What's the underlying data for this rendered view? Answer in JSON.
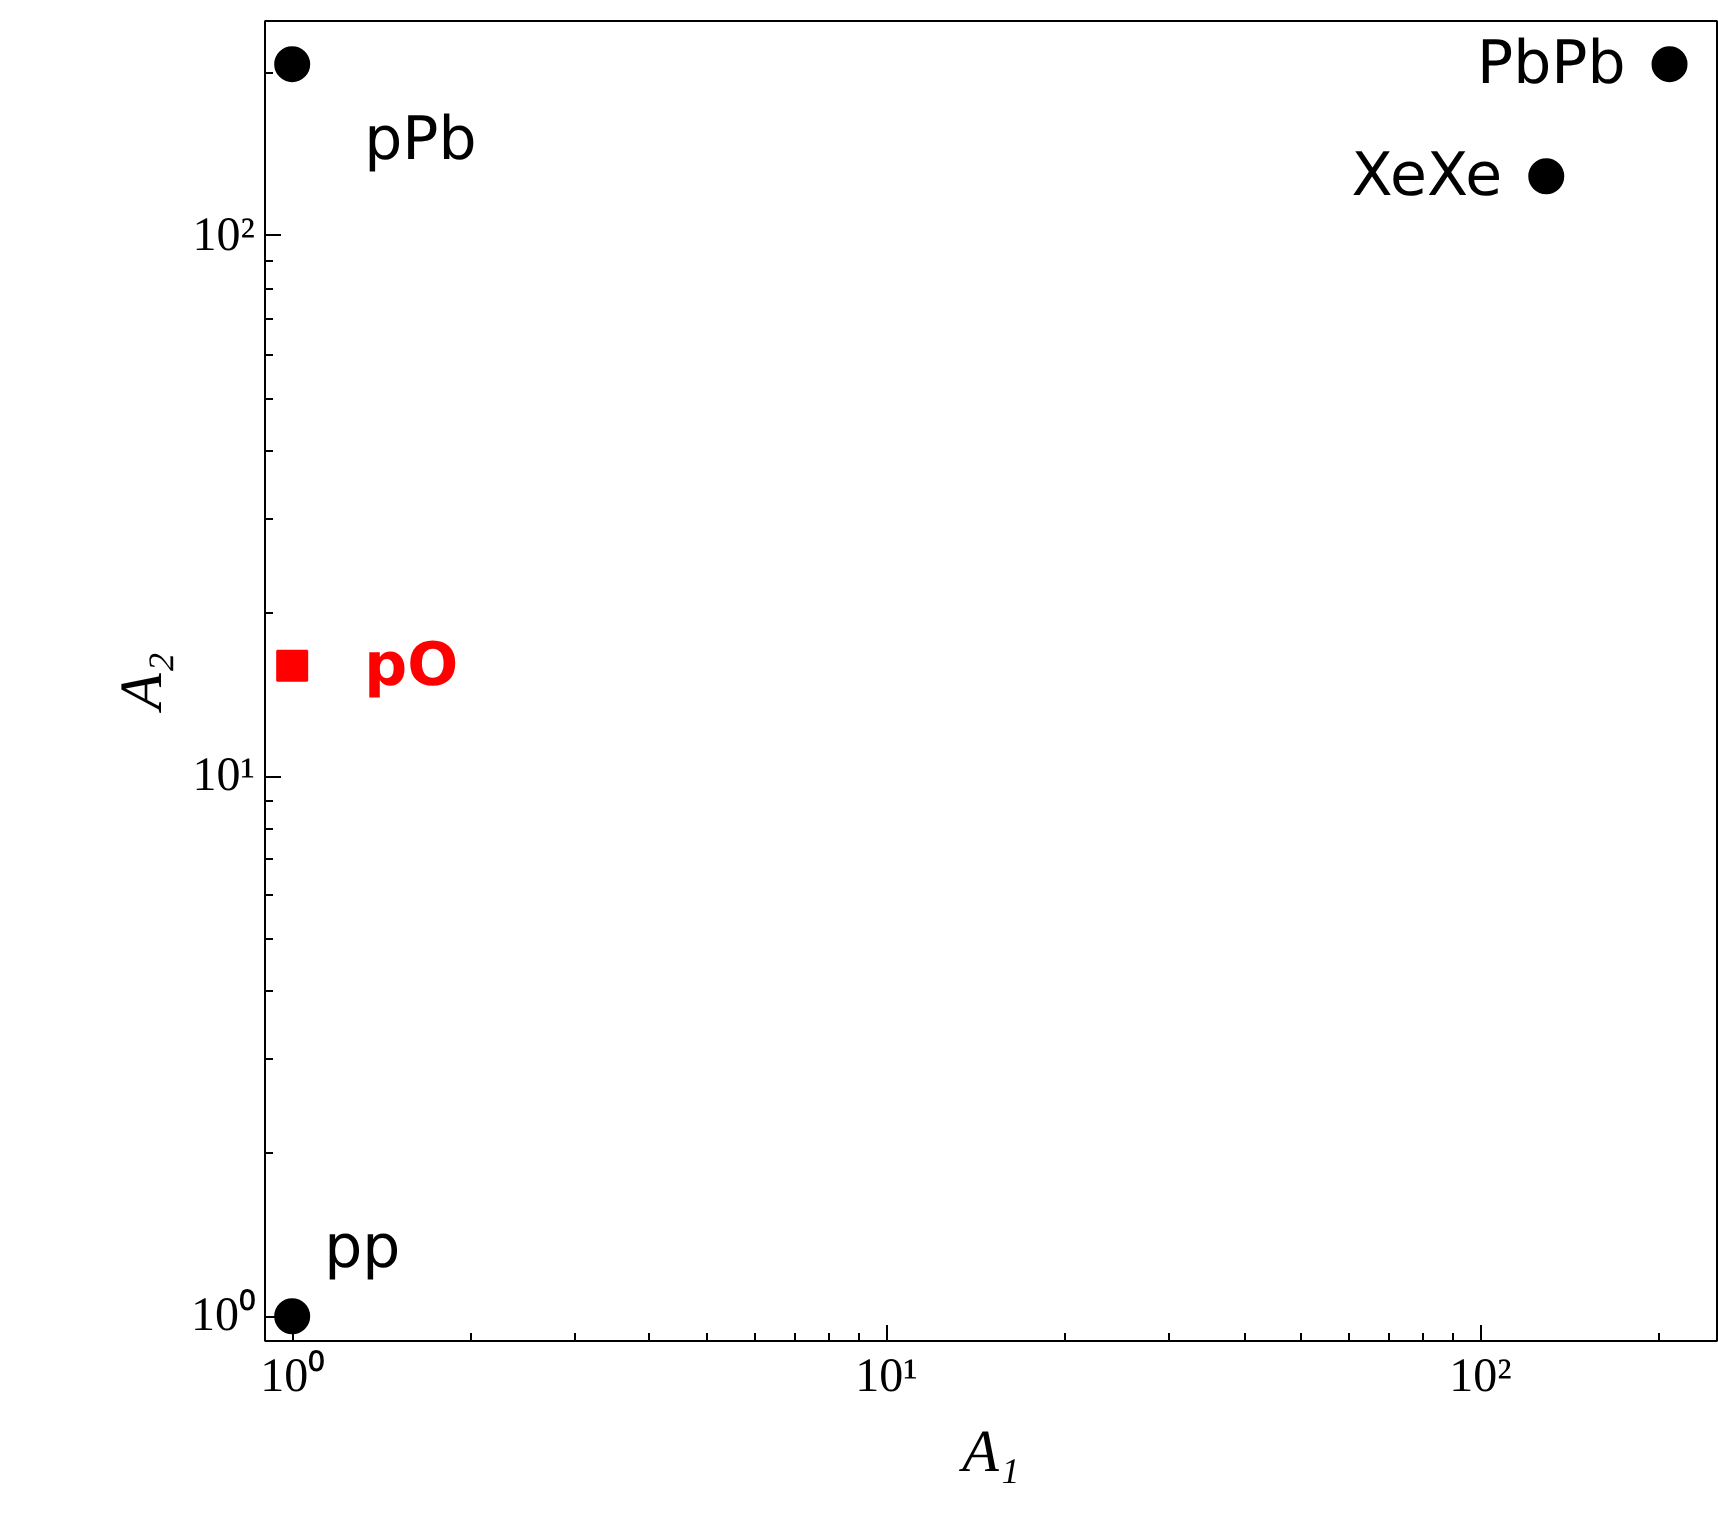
{
  "chart_data": {
    "type": "scatter",
    "xlabel": "A₁",
    "ylabel": "A₂",
    "log": "xy",
    "grid": false,
    "xlim": [
      0.9,
      250
    ],
    "ylim": [
      0.9,
      250
    ],
    "xticks": [
      {
        "value": 1,
        "label": "10⁰"
      },
      {
        "value": 10,
        "label": "10¹"
      },
      {
        "value": 100,
        "label": "10²"
      }
    ],
    "yticks": [
      {
        "value": 1,
        "label": "10⁰"
      },
      {
        "value": 10,
        "label": "10¹"
      },
      {
        "value": 100,
        "label": "10²"
      }
    ],
    "series": [
      {
        "color": "#000000",
        "marker": "circle",
        "x": [
          1,
          1,
          129,
          208
        ],
        "values": [
          1,
          208,
          129,
          208
        ]
      },
      {
        "name": "pO",
        "color": "#ff0000",
        "marker": "square",
        "x": [
          1
        ],
        "values": [
          16
        ]
      }
    ],
    "annotations": [
      {
        "text": "pp",
        "x": 1,
        "y": 1
      },
      {
        "text": "pPb",
        "x": 1,
        "y": 208
      },
      {
        "text": "XeXe",
        "x": 129,
        "y": 129
      },
      {
        "text": "PbPb",
        "x": 208,
        "y": 208
      }
    ]
  }
}
